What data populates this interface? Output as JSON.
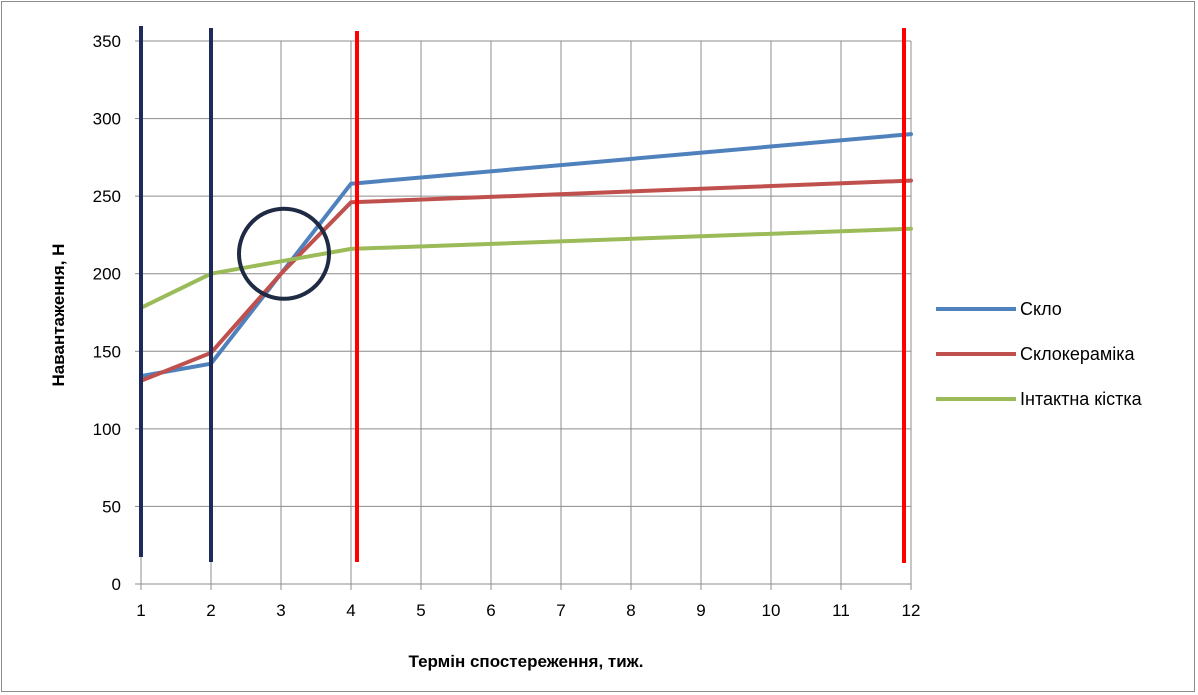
{
  "chart_data": {
    "type": "line",
    "title": "",
    "xlabel": "Термін спостереження, тиж.",
    "ylabel": "Навантаження, Н",
    "categories": [
      "1",
      "2",
      "3",
      "4",
      "5",
      "6",
      "7",
      "8",
      "9",
      "10",
      "11",
      "12"
    ],
    "ylim": [
      0,
      350
    ],
    "yticks": [
      0,
      50,
      100,
      150,
      200,
      250,
      300,
      350
    ],
    "grid": true,
    "legend_position": "right",
    "series": [
      {
        "name": "Скло",
        "color": "#4f81bd",
        "points": [
          [
            1,
            134
          ],
          [
            2,
            142
          ],
          [
            3,
            200
          ],
          [
            4,
            258
          ],
          [
            12,
            290
          ]
        ]
      },
      {
        "name": "Склокераміка",
        "color": "#c0504d",
        "points": [
          [
            1,
            131
          ],
          [
            2,
            149
          ],
          [
            3,
            200
          ],
          [
            4,
            246
          ],
          [
            12,
            260
          ]
        ]
      },
      {
        "name": "Інтактна кістка",
        "color": "#9bbb59",
        "points": [
          [
            1,
            178
          ],
          [
            2,
            200
          ],
          [
            3,
            208
          ],
          [
            4,
            216
          ],
          [
            12,
            229
          ]
        ]
      }
    ],
    "annotations": {
      "vertical_lines": [
        {
          "x": 1,
          "color": "#1f2a5c"
        },
        {
          "x": 2,
          "color": "#1f2a5c"
        },
        {
          "x": 4,
          "color": "#ff0000"
        },
        {
          "x": 12,
          "color": "#ff0000"
        }
      ],
      "circle": {
        "x": 3,
        "y": 209,
        "color": "#1f2a44"
      }
    }
  }
}
